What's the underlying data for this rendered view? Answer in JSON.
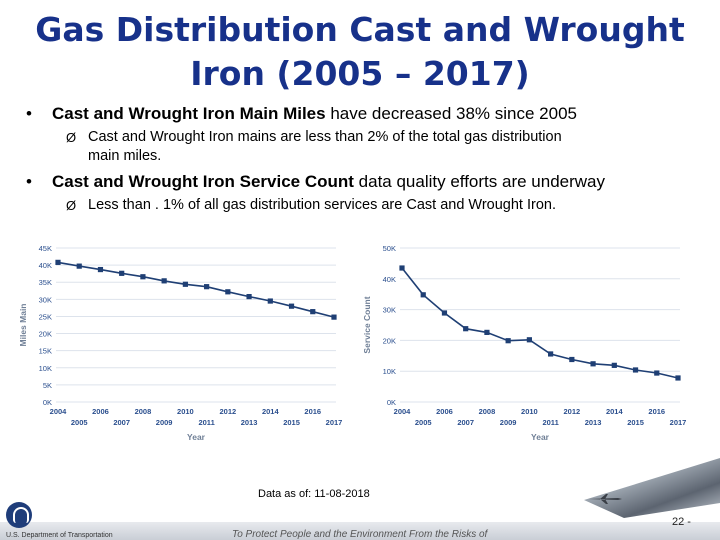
{
  "slide": {
    "title_line1": "Gas Distribution Cast and Wrought",
    "title_line2": "Iron (2005 – 2017)",
    "bullet1_bold": "Cast and Wrought Iron Main Miles",
    "bullet1_rest": " have decreased 38% since 2005",
    "sub1_line1": "Cast and Wrought Iron mains are less than 2% of the total gas distribution",
    "sub1_line2": "main miles.",
    "bullet2_bold": "Cast and Wrought Iron Service Count",
    "bullet2_rest": " data quality efforts are underway",
    "sub2_line1": "Less than . 1% of all gas distribution services are Cast and Wrought Iron.",
    "bullet_symbol": "•",
    "arrow_symbol": "Ø",
    "data_note": "Data as of: 11-08-2018",
    "footer_org": "U.S. Department of Transportation",
    "footer_mission": "To Protect People and the Environment From the Risks of",
    "page_number": "22 -",
    "colors": {
      "title": "#17318a",
      "line": "#1f3f74",
      "grid": "#dde3ec",
      "tick": "#2b4f8e"
    }
  },
  "chart_data": [
    {
      "type": "line",
      "x": [
        "2004",
        "2005",
        "2006",
        "2007",
        "2008",
        "2009",
        "2010",
        "2011",
        "2012",
        "2013",
        "2014",
        "2015",
        "2016",
        "2017"
      ],
      "series": [
        {
          "values": [
            40800,
            39700,
            38700,
            37600,
            36600,
            35400,
            34400,
            33700,
            32200,
            30800,
            29500,
            28000,
            26400,
            24800
          ]
        }
      ],
      "xlabel": "Year",
      "ylabel": "Miles Main",
      "ylim": [
        0,
        45000
      ],
      "yticks": [
        "0K",
        "5K",
        "10K",
        "15K",
        "20K",
        "25K",
        "30K",
        "35K",
        "40K",
        "45K"
      ],
      "grid": true
    },
    {
      "type": "line",
      "x": [
        "2004",
        "2005",
        "2006",
        "2007",
        "2008",
        "2009",
        "2010",
        "2011",
        "2012",
        "2013",
        "2014",
        "2015",
        "2016",
        "2017"
      ],
      "series": [
        {
          "values": [
            43500,
            34800,
            28900,
            23800,
            22600,
            19900,
            20200,
            15600,
            13800,
            12400,
            11900,
            10400,
            9400,
            7800
          ]
        }
      ],
      "xlabel": "Year",
      "ylabel": "Service Count",
      "ylim": [
        0,
        50000
      ],
      "yticks": [
        "0K",
        "10K",
        "20K",
        "30K",
        "40K",
        "50K"
      ],
      "grid": true
    }
  ]
}
